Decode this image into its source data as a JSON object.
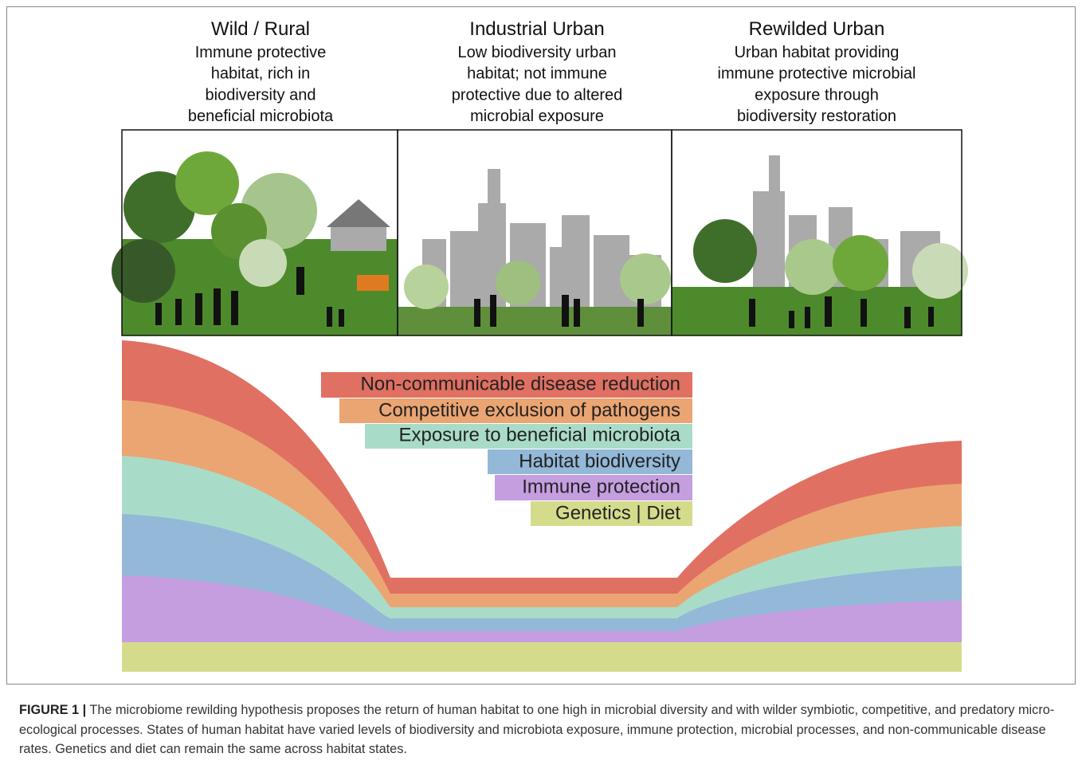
{
  "panels": [
    {
      "title": "Wild / Rural",
      "lines": [
        "Immune protective",
        "habitat, rich in",
        "biodiversity and",
        "beneficial microbiota"
      ]
    },
    {
      "title": "Industrial Urban",
      "lines": [
        "Low biodiversity urban",
        "habitat; not immune",
        "protective due to altered",
        "microbial exposure"
      ]
    },
    {
      "title": "Rewilded Urban",
      "lines": [
        "Urban habitat providing",
        "immune protective microbial",
        "exposure through",
        "biodiversity restoration"
      ]
    }
  ],
  "bands": [
    "Non-communicable disease reduction",
    "Competitive exclusion of pathogens",
    "Exposure to beneficial microbiota",
    "Habitat biodiversity",
    "Immune protection",
    "Genetics | Diet"
  ],
  "caption": {
    "label": "FIGURE 1 |",
    "text": "The microbiome rewilding hypothesis proposes the return of human habitat to one high in microbial diversity and with wilder symbiotic, competitive, and predatory micro-ecological processes. States of human habitat have varied levels of biodiversity and microbiota exposure, immune protection, microbial processes, and non-communicable disease rates. Genetics and diet can remain the same across habitat states."
  }
}
